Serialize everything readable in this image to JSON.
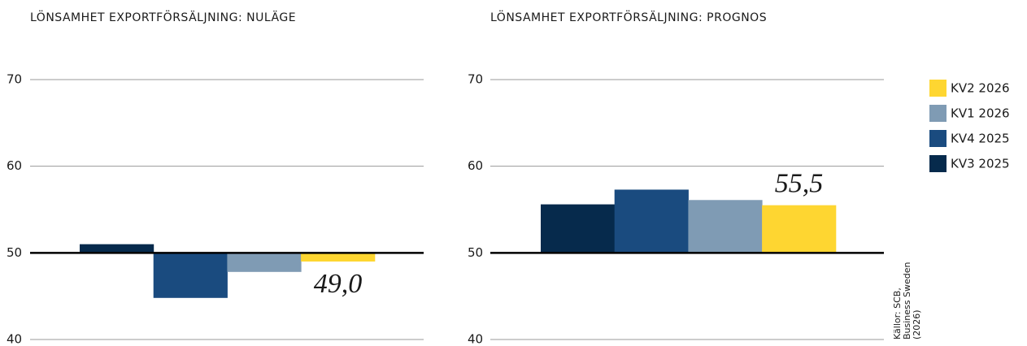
{
  "legend": [
    {
      "name": "KV2 2026",
      "color": "#fed631"
    },
    {
      "name": "KV1 2026",
      "color": "#7f9bb4"
    },
    {
      "name": "KV4 2025",
      "color": "#1a4b7f"
    },
    {
      "name": "KV3 2025",
      "color": "#062a4c"
    }
  ],
  "source": [
    "Källor: SCB,",
    "Business Sweden",
    "(2026)"
  ],
  "chart_data": [
    {
      "type": "bar",
      "title": "LÖNSAMHET EXPORTFÖRSÄLJNING: NULÄGE",
      "values": [
        51.0,
        44.8,
        47.8,
        49.0
      ],
      "value_labels": [
        null,
        null,
        null,
        "49,0"
      ],
      "baseline": 50,
      "ylim": [
        40,
        70
      ],
      "yticks": [
        40,
        50,
        60,
        70
      ],
      "grid": true
    },
    {
      "type": "bar",
      "title": "LÖNSAMHET EXPORTFÖRSÄLJNING: PROGNOS",
      "values": [
        55.6,
        57.3,
        56.1,
        55.5
      ],
      "value_labels": [
        null,
        null,
        null,
        "55,5"
      ],
      "baseline": 50,
      "ylim": [
        40,
        70
      ],
      "yticks": [
        40,
        50,
        60,
        70
      ],
      "grid": true
    }
  ]
}
